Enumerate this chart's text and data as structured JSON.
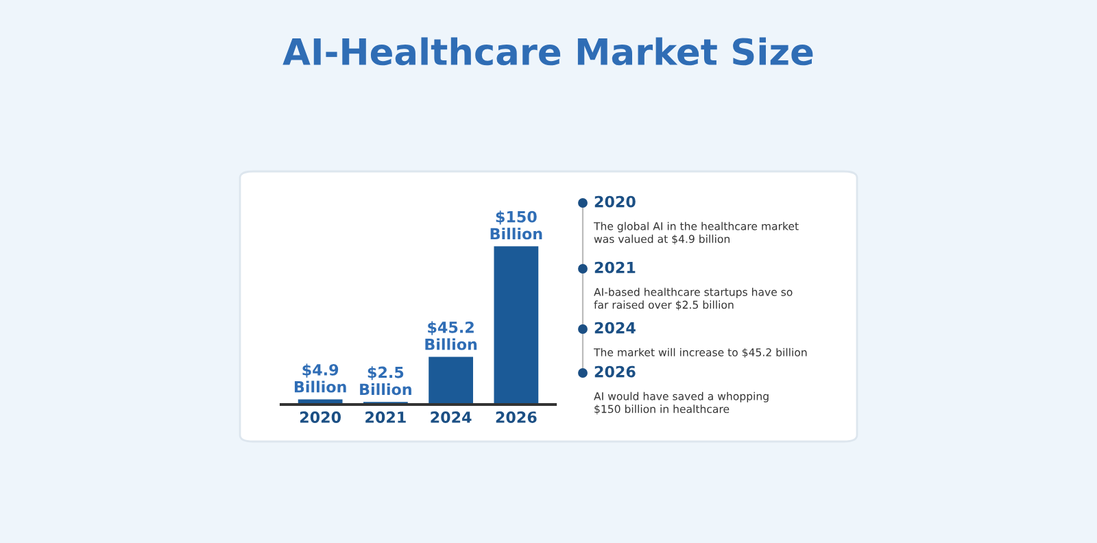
{
  "chart_data": {
    "type": "bar",
    "title": "AI-Healthcare Market Size",
    "categories": [
      "2020",
      "2021",
      "2024",
      "2026"
    ],
    "values": [
      4.9,
      2.5,
      45.2,
      150
    ],
    "color": "#1b5a97",
    "value_labels": [
      "$4.9\nBillion",
      "$2.5\nBillion",
      "$45.2\nBillion",
      "$150\nBillion"
    ],
    "grid": false,
    "annotations": [
      "2020",
      "The global AI in the healthcare market\nwas valued at $4.9 billion",
      "2021",
      "AI-based healthcare startups have so\nfar raised over $2.5 billion",
      "2024",
      "The market will increase to $45.2 billion",
      "2026",
      "AI would have saved a whopping\n$150 billion in healthcare"
    ]
  }
}
